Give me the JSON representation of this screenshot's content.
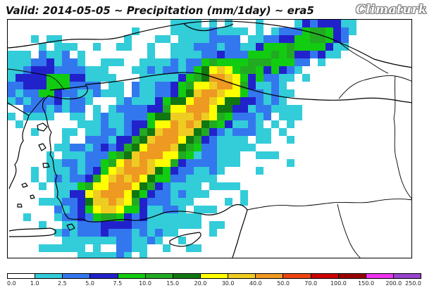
{
  "header": {
    "title": "Valid: 2014-05-05 ~ Precipitation (mm/1day) ~ era5",
    "brand": "Climaturk"
  },
  "legend": {
    "ticks": [
      "0.0",
      "1.0",
      "2.5",
      "5.0",
      "7.5",
      "10.0",
      "15.0",
      "20.0",
      "30.0",
      "40.0",
      "50.0",
      "70.0",
      "100.0",
      "150.0",
      "200.0",
      "250.0"
    ],
    "colors": [
      "#ffffff",
      "#33ccd9",
      "#3377ee",
      "#2222cc",
      "#11cc11",
      "#22aa22",
      "#117711",
      "#ffff00",
      "#eecc22",
      "#ee9922",
      "#ee4411",
      "#cc0000",
      "#990000",
      "#ee33ee",
      "#9944cc"
    ]
  },
  "map": {
    "precip_level_colors": [
      "#ffffff",
      "#33ccd9",
      "#3377ee",
      "#2222cc",
      "#11cc11",
      "#22aa22",
      "#117711",
      "#ffff00",
      "#eecc22",
      "#ee9922"
    ]
  }
}
